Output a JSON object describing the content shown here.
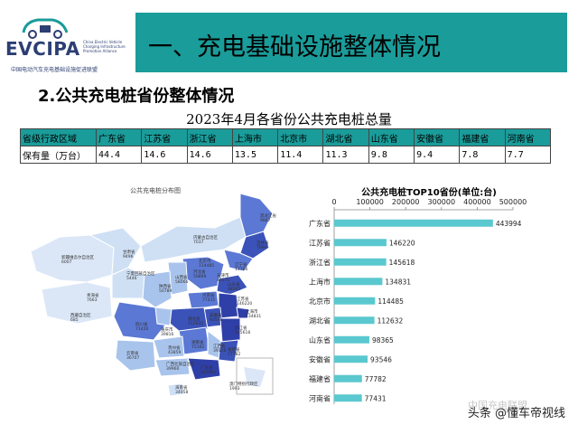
{
  "logo": {
    "brand": "EVCIPA",
    "english": "China Electric Vehicle Charging Infrastructure Promotion Alliance",
    "chinese": "中国电动汽车充电基础设施促进联盟"
  },
  "header": {
    "title": "一、充电基础设施整体情况"
  },
  "section": {
    "title": "2.公共充电桩省份整体情况"
  },
  "table": {
    "title": "2023年4月各省份公共充电桩总量",
    "row_header_label": "省级行政区域",
    "row_value_label": "保有量（万台）",
    "provinces": [
      "广东省",
      "江苏省",
      "浙江省",
      "上海市",
      "北京市",
      "湖北省",
      "山东省",
      "安徽省",
      "福建省",
      "河南省"
    ],
    "values": [
      "44.4",
      "14.6",
      "14.6",
      "13.5",
      "11.4",
      "11.3",
      "9.8",
      "9.4",
      "7.8",
      "7.7"
    ]
  },
  "map": {
    "title": "公共充电桩分布图",
    "labels": [
      {
        "name": "黑龙江省",
        "value": "9887"
      },
      {
        "name": "吉林省",
        "value": "7994"
      },
      {
        "name": "辽宁省",
        "value": "13786"
      },
      {
        "name": "内蒙古自治区",
        "value": "7037"
      },
      {
        "name": "北京市",
        "value": "114485"
      },
      {
        "name": "天津市",
        "value": "43571"
      },
      {
        "name": "河北省",
        "value": "50869"
      },
      {
        "name": "山西省",
        "value": "58066"
      },
      {
        "name": "山东省",
        "value": "98365"
      },
      {
        "name": "新疆维吾尔自治区",
        "value": "6007"
      },
      {
        "name": "甘肃省",
        "value": "9496"
      },
      {
        "name": "宁夏回族自治区",
        "value": "5446"
      },
      {
        "name": "陕西省",
        "value": "50789"
      },
      {
        "name": "河南省",
        "value": "77431"
      },
      {
        "name": "江苏省",
        "value": "146220"
      },
      {
        "name": "安徽省",
        "value": "93546"
      },
      {
        "name": "上海市",
        "value": "134831"
      },
      {
        "name": "浙江省",
        "value": "145618"
      },
      {
        "name": "湖北省",
        "value": "112632"
      },
      {
        "name": "青海省",
        "value": "7663"
      },
      {
        "name": "西藏自治区",
        "value": "685"
      },
      {
        "name": "四川省",
        "value": "71420"
      },
      {
        "name": "重庆市",
        "value": "39816"
      },
      {
        "name": "湖南省",
        "value": "75161"
      },
      {
        "name": "江西省",
        "value": "39128"
      },
      {
        "name": "福建省",
        "value": "77782"
      },
      {
        "name": "贵州省",
        "value": "43859"
      },
      {
        "name": "云南省",
        "value": "36707"
      },
      {
        "name": "广西壮族自治区",
        "value": "39960"
      },
      {
        "name": "广东省",
        "value": "443994"
      },
      {
        "name": "海南省",
        "value": "34058"
      },
      {
        "name": "澳门特别行政区",
        "value": "1993"
      }
    ]
  },
  "chart_data": {
    "type": "bar",
    "orientation": "horizontal",
    "title": "公共充电桩TOP10省份(单位:台)",
    "categories": [
      "广东省",
      "江苏省",
      "浙江省",
      "上海市",
      "北京市",
      "湖北省",
      "山东省",
      "安徽省",
      "福建省",
      "河南省"
    ],
    "values": [
      443994,
      146220,
      145618,
      134831,
      114485,
      112632,
      98365,
      93546,
      77782,
      77431
    ],
    "xlim": [
      0,
      500000
    ],
    "ticks": [
      "0",
      "100000",
      "200000",
      "300000",
      "400000",
      "500000"
    ],
    "axis_position": "top",
    "grid": false,
    "bar_color": "#5ac8cf"
  },
  "watermark": {
    "text": "头条 @懂车帝视线",
    "faint": "中国充电联盟"
  },
  "colors": {
    "teal": "#1a9c9a",
    "map_dark": "#2f3fa8",
    "map_mid": "#5b78d4",
    "map_light": "#a9c4ec",
    "map_pale": "#dbe7f7"
  }
}
